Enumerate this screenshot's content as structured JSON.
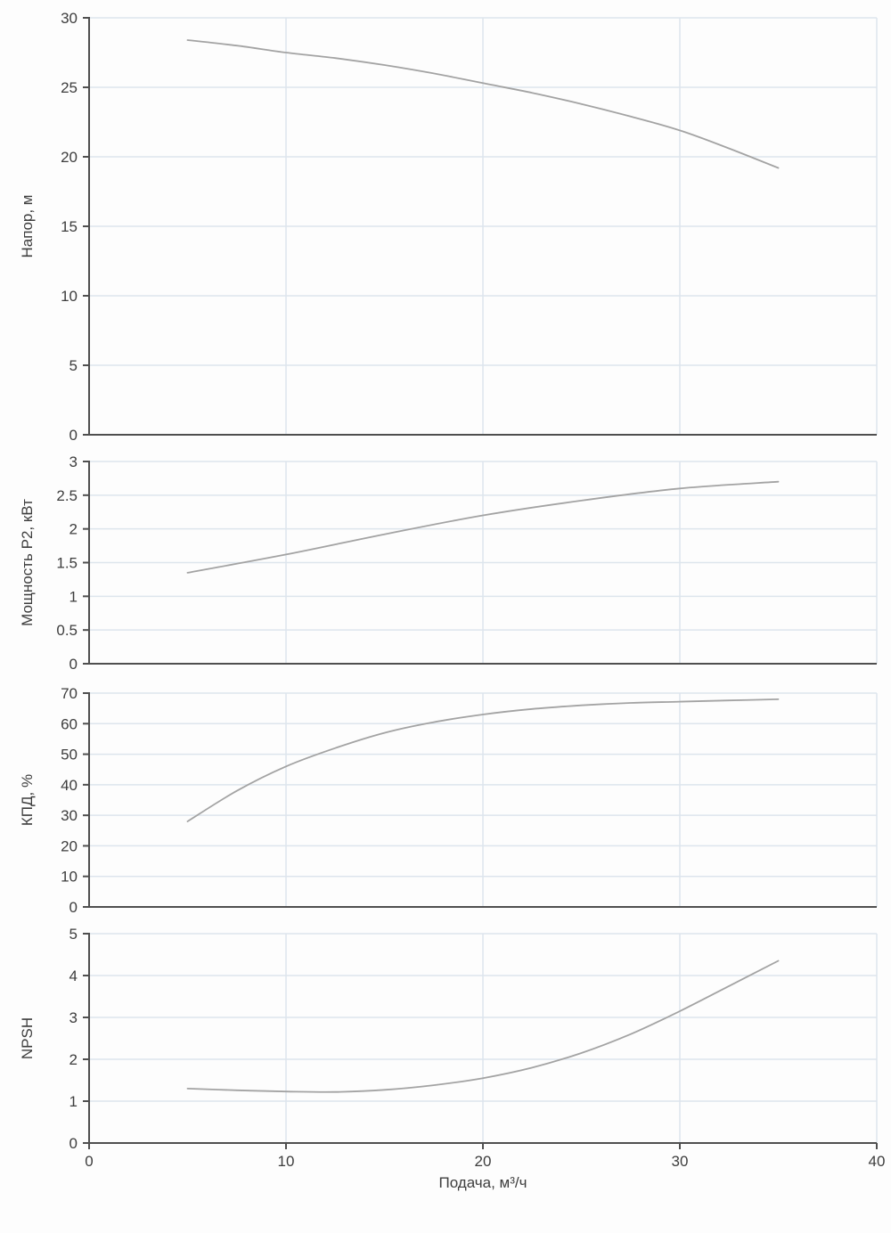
{
  "figure": {
    "background": "#fdfdfd",
    "grid_color": "#dde5ed",
    "axis_color": "#4f4f4f",
    "curve_color": "#a3a3a3",
    "label_color": "#3d3d3d"
  },
  "chart_data": [
    {
      "type": "line",
      "title": "",
      "ylabel": "Напор, м",
      "xlabel": "",
      "ylim": [
        0,
        30
      ],
      "yticks": [
        0,
        5,
        10,
        15,
        20,
        25,
        30
      ],
      "xlim": [
        0,
        40
      ],
      "xticks": [
        0,
        10,
        20,
        30,
        40
      ],
      "x": [
        5,
        7.5,
        10,
        12.5,
        15,
        17.5,
        20,
        22.5,
        25,
        27.5,
        30,
        32.5,
        35
      ],
      "y": [
        28.4,
        28.0,
        27.5,
        27.1,
        26.6,
        26.0,
        25.3,
        24.6,
        23.8,
        22.9,
        21.9,
        20.6,
        19.2
      ]
    },
    {
      "type": "line",
      "title": "",
      "ylabel": "Мощность P2, кВт",
      "xlabel": "",
      "ylim": [
        0,
        3
      ],
      "yticks": [
        0,
        0.5,
        1,
        1.5,
        2,
        2.5,
        3
      ],
      "xlim": [
        0,
        40
      ],
      "xticks": [
        0,
        10,
        20,
        30,
        40
      ],
      "x": [
        5,
        10,
        15,
        20,
        25,
        30,
        35
      ],
      "y": [
        1.35,
        1.62,
        1.92,
        2.2,
        2.42,
        2.6,
        2.7
      ]
    },
    {
      "type": "line",
      "title": "",
      "ylabel": "КПД, %",
      "xlabel": "",
      "ylim": [
        0,
        70
      ],
      "yticks": [
        0,
        10,
        20,
        30,
        40,
        50,
        60,
        70
      ],
      "xlim": [
        0,
        40
      ],
      "xticks": [
        0,
        10,
        20,
        30,
        40
      ],
      "x": [
        5,
        7.5,
        10,
        12.5,
        15,
        17.5,
        20,
        22.5,
        25,
        27.5,
        30,
        32.5,
        35
      ],
      "y": [
        28,
        38,
        46,
        52,
        57,
        60.5,
        63,
        64.8,
        66,
        66.8,
        67.2,
        67.6,
        68
      ]
    },
    {
      "type": "line",
      "title": "",
      "ylabel": "NPSH",
      "xlabel": "Подача, м³/ч",
      "ylim": [
        0,
        5
      ],
      "yticks": [
        0,
        1,
        2,
        3,
        4,
        5
      ],
      "xlim": [
        0,
        40
      ],
      "xticks": [
        0,
        10,
        20,
        30,
        40
      ],
      "x": [
        5,
        7.5,
        10,
        12.5,
        15,
        17.5,
        20,
        22.5,
        25,
        27.5,
        30,
        32.5,
        35
      ],
      "y": [
        1.3,
        1.26,
        1.23,
        1.22,
        1.27,
        1.38,
        1.55,
        1.8,
        2.15,
        2.6,
        3.15,
        3.75,
        4.35
      ]
    }
  ]
}
